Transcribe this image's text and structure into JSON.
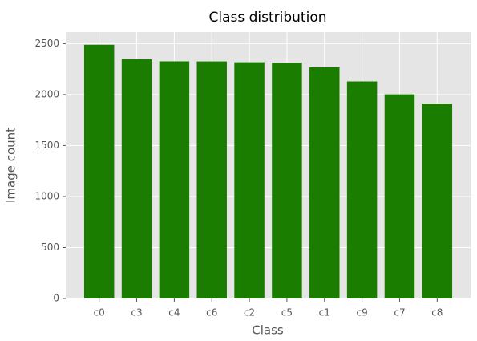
{
  "chart_data": {
    "type": "bar",
    "title": "Class distribution",
    "x_label": "Class",
    "y_label": "Image count",
    "categories": [
      "c0",
      "c3",
      "c4",
      "c6",
      "c2",
      "c5",
      "c1",
      "c9",
      "c7",
      "c8"
    ],
    "values": [
      2489,
      2346,
      2326,
      2325,
      2317,
      2312,
      2267,
      2129,
      2002,
      1911
    ],
    "color": "#1a7d00",
    "ylim": [
      0,
      2613
    ],
    "yticks": [
      0,
      500,
      1000,
      1500,
      2000,
      2500
    ],
    "grid": true
  }
}
